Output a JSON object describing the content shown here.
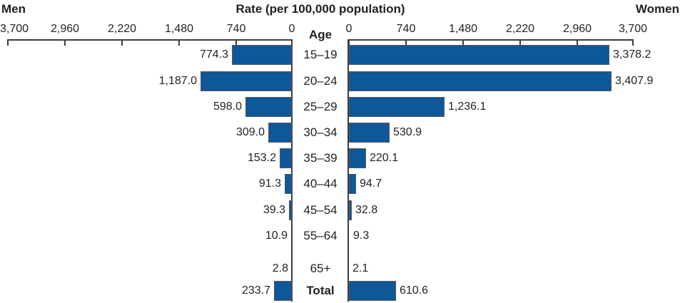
{
  "chart_data": {
    "type": "bar",
    "subtype": "population-pyramid",
    "title": "Rate (per 100,000 population)",
    "left_series_label": "Men",
    "right_series_label": "Women",
    "center_axis_label": "Age",
    "categories": [
      "15–19",
      "20–24",
      "25–29",
      "30–34",
      "35–39",
      "40–44",
      "45–54",
      "55–64",
      "65+",
      "Total"
    ],
    "series": [
      {
        "name": "Men",
        "values": [
          774.3,
          1187.0,
          598.0,
          309.0,
          153.2,
          91.3,
          39.3,
          10.9,
          2.8,
          233.7
        ]
      },
      {
        "name": "Women",
        "values": [
          3378.2,
          3407.9,
          1236.1,
          530.9,
          220.1,
          94.7,
          32.8,
          9.3,
          2.1,
          610.6
        ]
      }
    ],
    "labels": {
      "men": [
        "774.3",
        "1,187.0",
        "598.0",
        "309.0",
        "153.2",
        "91.3",
        "39.3",
        "10.9",
        "2.8",
        "233.7"
      ],
      "women": [
        "3,378.2",
        "3,407.9",
        "1,236.1",
        "530.9",
        "220.1",
        "94.7",
        "32.8",
        "9.3",
        "2.1",
        "610.6"
      ]
    },
    "men_axis_ticks": [
      "3,700",
      "2,960",
      "2,220",
      "1,480",
      "740",
      "0"
    ],
    "women_axis_ticks": [
      "0",
      "740",
      "1,480",
      "2,220",
      "2,960",
      "3,700"
    ],
    "xlim": [
      0,
      3700
    ],
    "tick_interval": 740,
    "bold_categories": [
      "Total"
    ],
    "grid": false,
    "legend_position": "none"
  },
  "colors": {
    "bar_fill": "#0e5799",
    "bar_border": "#58595b",
    "axis_line": "#3d3d3d",
    "text": "#231f20",
    "background": "#ffffff"
  }
}
